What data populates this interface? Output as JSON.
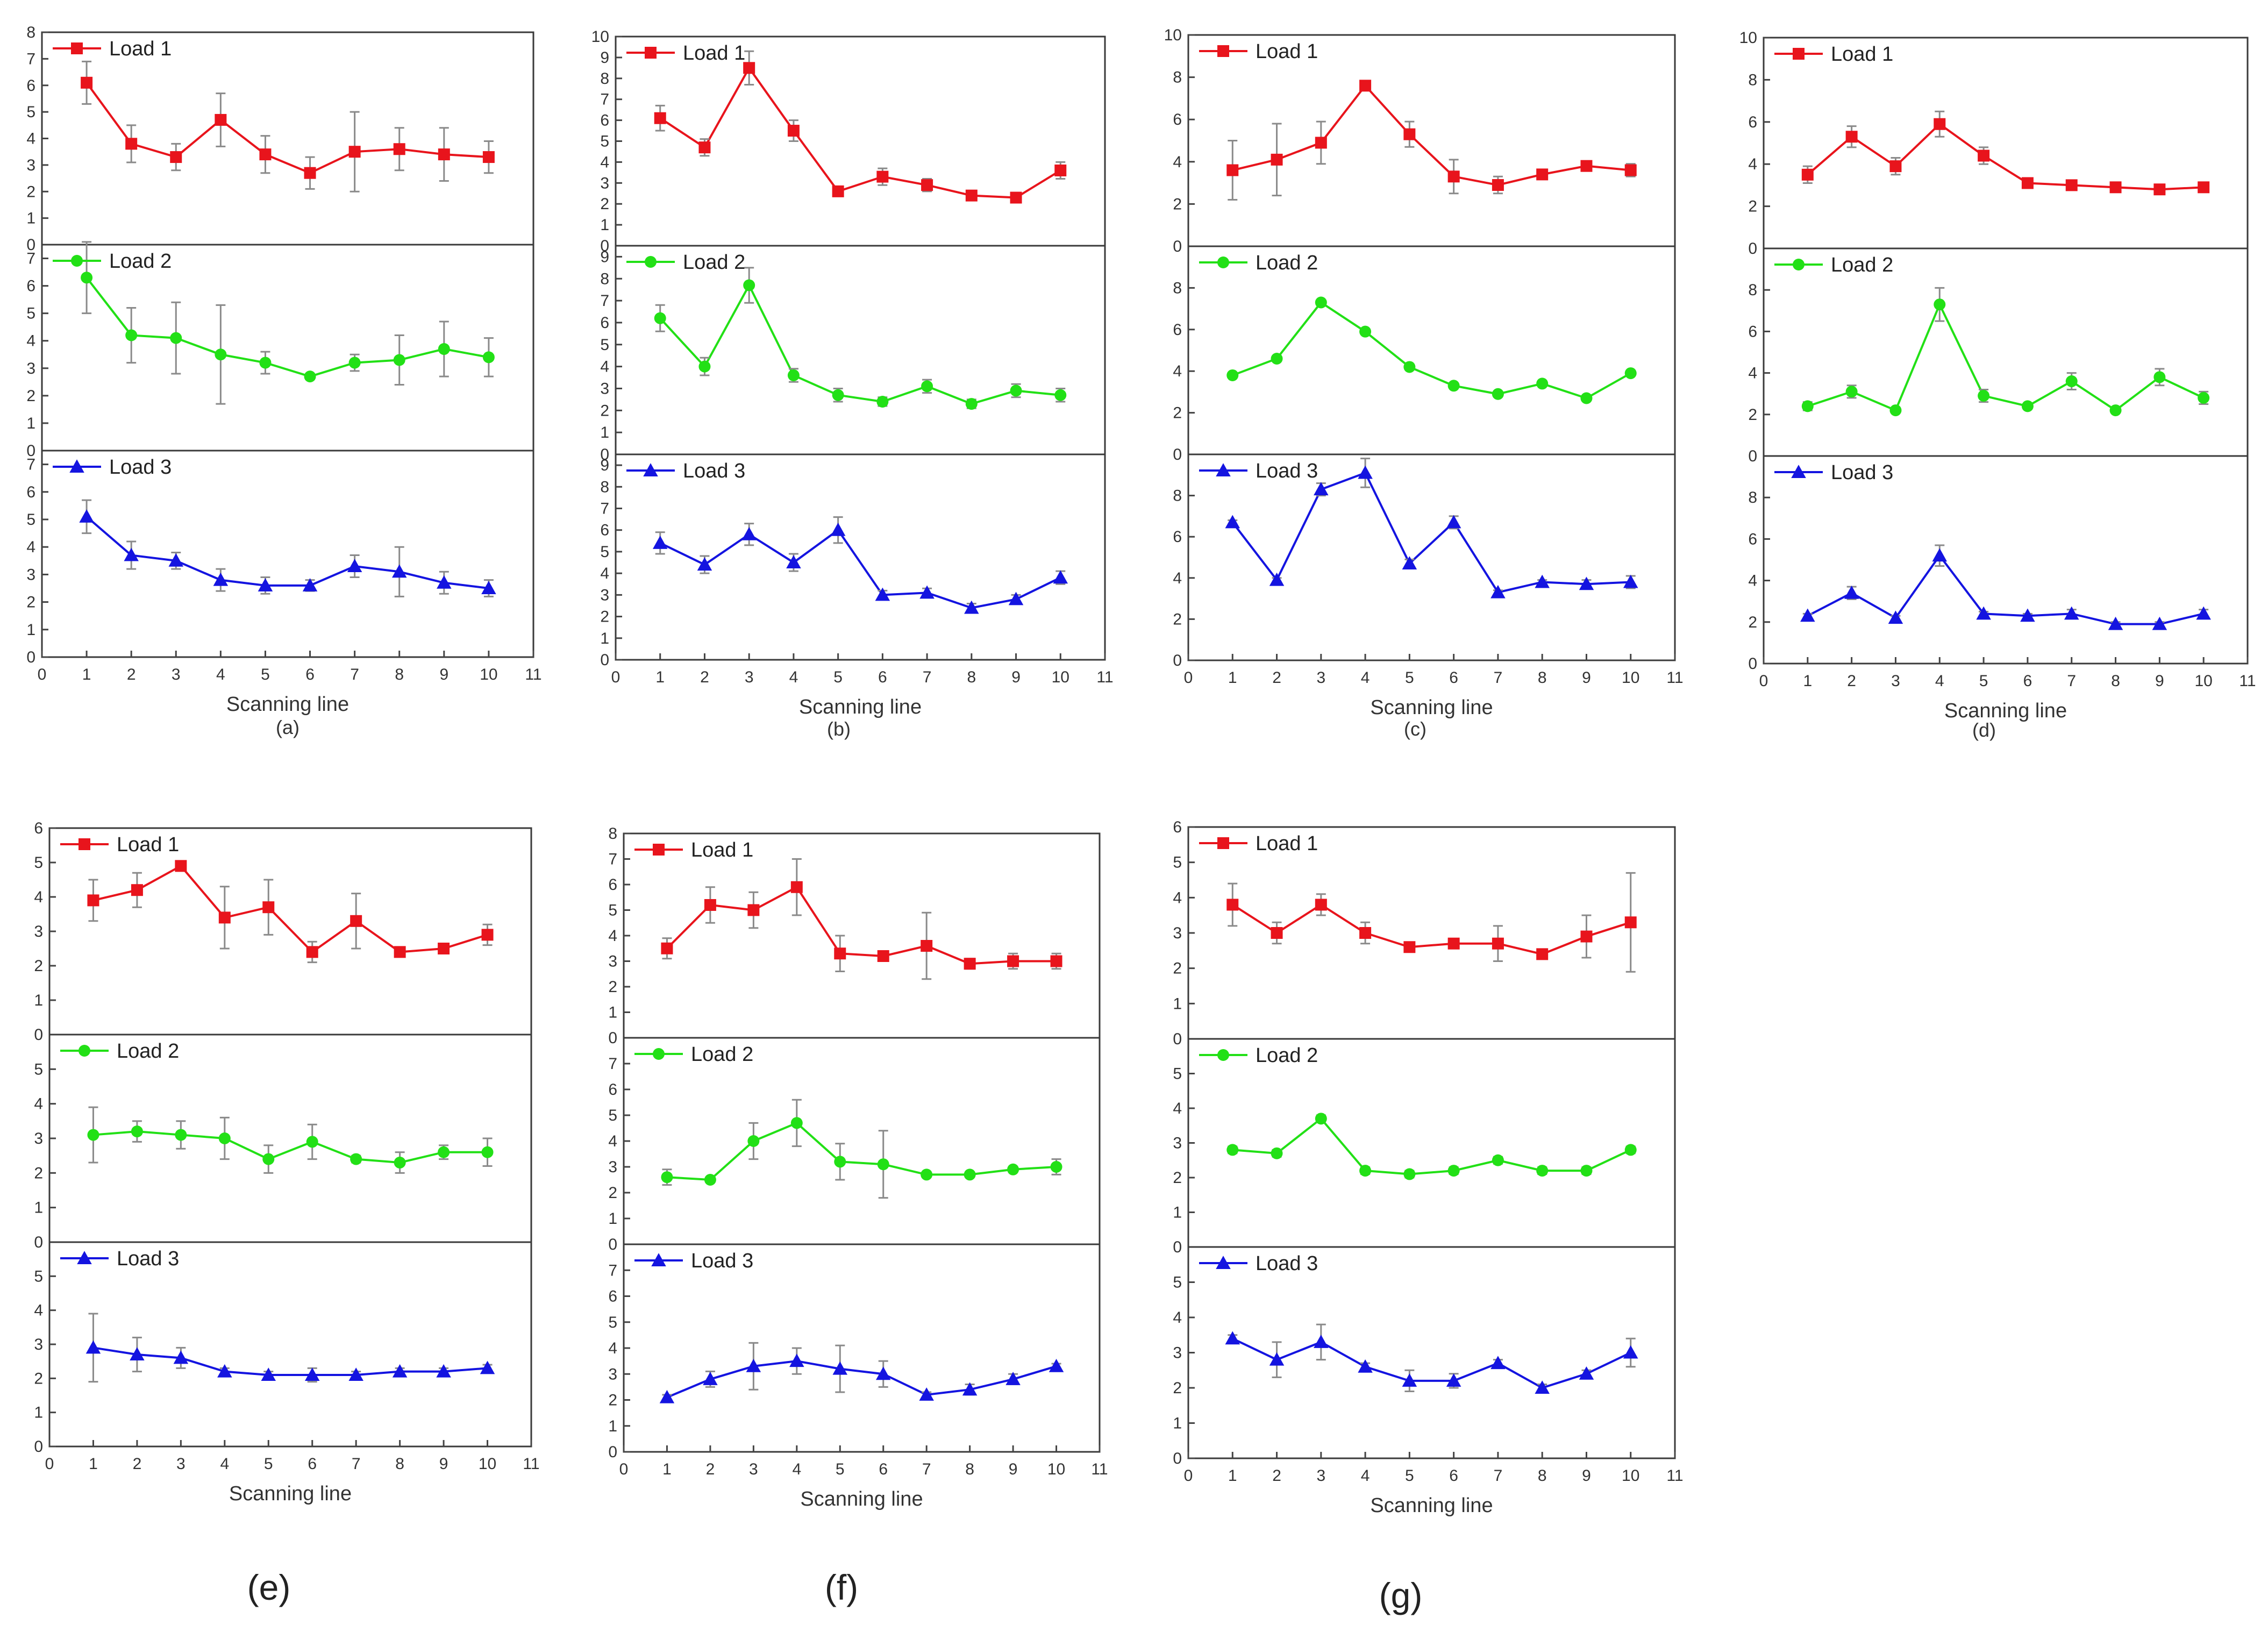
{
  "chart_data": [
    {
      "type": "line",
      "caption": "(a)",
      "xlabel": "Scanning line",
      "xlim": [
        0,
        11
      ],
      "xticks": [
        0,
        1,
        2,
        3,
        4,
        5,
        6,
        7,
        8,
        9,
        10,
        11
      ],
      "x": [
        1,
        2,
        3,
        4,
        5,
        6,
        7,
        8,
        9,
        10
      ],
      "subplots": [
        {
          "name": "Load 1",
          "color": "#e8141c",
          "marker": "square",
          "ylim": [
            0,
            8
          ],
          "yticks": [
            0,
            1,
            2,
            3,
            4,
            5,
            6,
            7,
            8
          ],
          "values": [
            6.1,
            3.8,
            3.3,
            4.7,
            3.4,
            2.7,
            3.5,
            3.6,
            3.4,
            3.3
          ],
          "errors": [
            0.8,
            0.7,
            0.5,
            1.0,
            0.7,
            0.6,
            1.5,
            0.8,
            1.0,
            0.6
          ]
        },
        {
          "name": "Load 2",
          "color": "#22e016",
          "marker": "circle",
          "ylim": [
            0,
            7.5
          ],
          "yticks": [
            0,
            1,
            2,
            3,
            4,
            5,
            6,
            7
          ],
          "values": [
            6.3,
            4.2,
            4.1,
            3.5,
            3.2,
            2.7,
            3.2,
            3.3,
            3.7,
            3.4
          ],
          "errors": [
            1.3,
            1.0,
            1.3,
            1.8,
            0.4,
            0.1,
            0.3,
            0.9,
            1.0,
            0.7
          ]
        },
        {
          "name": "Load 3",
          "color": "#1414e0",
          "marker": "triangle",
          "ylim": [
            0,
            7.5
          ],
          "yticks": [
            0,
            1,
            2,
            3,
            4,
            5,
            6,
            7
          ],
          "values": [
            5.1,
            3.7,
            3.5,
            2.8,
            2.6,
            2.6,
            3.3,
            3.1,
            2.7,
            2.5
          ],
          "errors": [
            0.6,
            0.5,
            0.3,
            0.4,
            0.3,
            0.2,
            0.4,
            0.9,
            0.4,
            0.3
          ]
        }
      ]
    },
    {
      "type": "line",
      "caption": "(b)",
      "xlabel": "Scanning line",
      "xlim": [
        0,
        11
      ],
      "xticks": [
        0,
        1,
        2,
        3,
        4,
        5,
        6,
        7,
        8,
        9,
        10,
        11
      ],
      "x": [
        1,
        2,
        3,
        4,
        5,
        6,
        7,
        8,
        9,
        10
      ],
      "subplots": [
        {
          "name": "Load 1",
          "color": "#e8141c",
          "marker": "square",
          "ylim": [
            0,
            10
          ],
          "yticks": [
            0,
            1,
            2,
            3,
            4,
            5,
            6,
            7,
            8,
            9,
            10
          ],
          "values": [
            6.1,
            4.7,
            8.5,
            5.5,
            2.6,
            3.3,
            2.9,
            2.4,
            2.3,
            3.6
          ],
          "errors": [
            0.6,
            0.4,
            0.8,
            0.5,
            0.2,
            0.4,
            0.3,
            0.2,
            0.2,
            0.4
          ]
        },
        {
          "name": "Load 2",
          "color": "#22e016",
          "marker": "circle",
          "ylim": [
            0,
            9.5
          ],
          "yticks": [
            0,
            1,
            2,
            3,
            4,
            5,
            6,
            7,
            8,
            9
          ],
          "values": [
            6.2,
            4.0,
            7.7,
            3.6,
            2.7,
            2.4,
            3.1,
            2.3,
            2.9,
            2.7
          ],
          "errors": [
            0.6,
            0.4,
            0.8,
            0.3,
            0.3,
            0.2,
            0.3,
            0.2,
            0.3,
            0.3
          ]
        },
        {
          "name": "Load 3",
          "color": "#1414e0",
          "marker": "triangle",
          "ylim": [
            0,
            9.5
          ],
          "yticks": [
            0,
            1,
            2,
            3,
            4,
            5,
            6,
            7,
            8,
            9
          ],
          "values": [
            5.4,
            4.4,
            5.8,
            4.5,
            6.0,
            3.0,
            3.1,
            2.4,
            2.8,
            3.8
          ],
          "errors": [
            0.5,
            0.4,
            0.5,
            0.4,
            0.6,
            0.2,
            0.2,
            0.2,
            0.2,
            0.3
          ]
        }
      ]
    },
    {
      "type": "line",
      "caption": "(c)",
      "xlabel": "Scanning line",
      "xlim": [
        0,
        11
      ],
      "xticks": [
        0,
        1,
        2,
        3,
        4,
        5,
        6,
        7,
        8,
        9,
        10,
        11
      ],
      "x": [
        1,
        2,
        3,
        4,
        5,
        6,
        7,
        8,
        9,
        10
      ],
      "subplots": [
        {
          "name": "Load 1",
          "color": "#e8141c",
          "marker": "square",
          "ylim": [
            0,
            10
          ],
          "yticks": [
            0,
            2,
            4,
            6,
            8,
            10
          ],
          "values": [
            3.6,
            4.1,
            4.9,
            7.6,
            5.3,
            3.3,
            2.9,
            3.4,
            3.8,
            3.6
          ],
          "errors": [
            1.4,
            1.7,
            1.0,
            0.2,
            0.6,
            0.8,
            0.4,
            0.1,
            0.1,
            0.3
          ]
        },
        {
          "name": "Load 2",
          "color": "#22e016",
          "marker": "circle",
          "ylim": [
            0,
            10
          ],
          "yticks": [
            0,
            2,
            4,
            6,
            8
          ],
          "values": [
            3.8,
            4.6,
            7.3,
            5.9,
            4.2,
            3.3,
            2.9,
            3.4,
            2.7,
            3.9
          ],
          "errors": [
            0.1,
            0.1,
            0.1,
            0.1,
            0.1,
            0.1,
            0.1,
            0.1,
            0.1,
            0.1
          ]
        },
        {
          "name": "Load 3",
          "color": "#1414e0",
          "marker": "triangle",
          "ylim": [
            0,
            10
          ],
          "yticks": [
            0,
            2,
            4,
            6,
            8
          ],
          "values": [
            6.7,
            3.9,
            8.3,
            9.1,
            4.7,
            6.7,
            3.3,
            3.8,
            3.7,
            3.8
          ],
          "errors": [
            0.1,
            0.1,
            0.3,
            0.7,
            0.2,
            0.3,
            0.1,
            0.1,
            0.2,
            0.3
          ]
        }
      ]
    },
    {
      "type": "line",
      "caption": "(d)",
      "xlabel": "Scanning line",
      "xlim": [
        0,
        11
      ],
      "xticks": [
        0,
        1,
        2,
        3,
        4,
        5,
        6,
        7,
        8,
        9,
        10,
        11
      ],
      "x": [
        1,
        2,
        3,
        4,
        5,
        6,
        7,
        8,
        9,
        10
      ],
      "subplots": [
        {
          "name": "Load 1",
          "color": "#e8141c",
          "marker": "square",
          "ylim": [
            0,
            10
          ],
          "yticks": [
            0,
            2,
            4,
            6,
            8,
            10
          ],
          "values": [
            3.5,
            5.3,
            3.9,
            5.9,
            4.4,
            3.1,
            3.0,
            2.9,
            2.8,
            2.9
          ],
          "errors": [
            0.4,
            0.5,
            0.4,
            0.6,
            0.4,
            0.2,
            0.2,
            0.2,
            0.2,
            0.2
          ]
        },
        {
          "name": "Load 2",
          "color": "#22e016",
          "marker": "circle",
          "ylim": [
            0,
            10
          ],
          "yticks": [
            0,
            2,
            4,
            6,
            8
          ],
          "values": [
            2.4,
            3.1,
            2.2,
            7.3,
            2.9,
            2.4,
            3.6,
            2.2,
            3.8,
            2.8
          ],
          "errors": [
            0.2,
            0.3,
            0.1,
            0.8,
            0.3,
            0.1,
            0.4,
            0.1,
            0.4,
            0.3
          ]
        },
        {
          "name": "Load 3",
          "color": "#1414e0",
          "marker": "triangle",
          "ylim": [
            0,
            10
          ],
          "yticks": [
            0,
            2,
            4,
            6,
            8
          ],
          "values": [
            2.3,
            3.4,
            2.2,
            5.2,
            2.4,
            2.3,
            2.4,
            1.9,
            1.9,
            2.4
          ],
          "errors": [
            0.1,
            0.3,
            0.1,
            0.5,
            0.1,
            0.1,
            0.2,
            0.1,
            0.1,
            0.2
          ]
        }
      ]
    },
    {
      "type": "line",
      "caption": "(e)",
      "xlabel": "Scanning line",
      "xlim": [
        0,
        11
      ],
      "xticks": [
        0,
        1,
        2,
        3,
        4,
        5,
        6,
        7,
        8,
        9,
        10,
        11
      ],
      "x": [
        1,
        2,
        3,
        4,
        5,
        6,
        7,
        8,
        9,
        10
      ],
      "subplots": [
        {
          "name": "Load 1",
          "color": "#e8141c",
          "marker": "square",
          "ylim": [
            0,
            6
          ],
          "yticks": [
            0,
            1,
            2,
            3,
            4,
            5,
            6
          ],
          "values": [
            3.9,
            4.2,
            4.9,
            3.4,
            3.7,
            2.4,
            3.3,
            2.4,
            2.5,
            2.9
          ],
          "errors": [
            0.6,
            0.5,
            0.1,
            0.9,
            0.8,
            0.3,
            0.8,
            0.1,
            0.1,
            0.3
          ]
        },
        {
          "name": "Load 2",
          "color": "#22e016",
          "marker": "circle",
          "ylim": [
            0,
            6
          ],
          "yticks": [
            0,
            1,
            2,
            3,
            4,
            5
          ],
          "values": [
            3.1,
            3.2,
            3.1,
            3.0,
            2.4,
            2.9,
            2.4,
            2.3,
            2.6,
            2.6
          ],
          "errors": [
            0.8,
            0.3,
            0.4,
            0.6,
            0.4,
            0.5,
            0.1,
            0.3,
            0.2,
            0.4
          ]
        },
        {
          "name": "Load 3",
          "color": "#1414e0",
          "marker": "triangle",
          "ylim": [
            0,
            6
          ],
          "yticks": [
            0,
            1,
            2,
            3,
            4,
            5
          ],
          "values": [
            2.9,
            2.7,
            2.6,
            2.2,
            2.1,
            2.1,
            2.1,
            2.2,
            2.2,
            2.3
          ],
          "errors": [
            1.0,
            0.5,
            0.3,
            0.1,
            0.1,
            0.2,
            0.1,
            0.1,
            0.1,
            0.1
          ]
        }
      ]
    },
    {
      "type": "line",
      "caption": "(f)",
      "xlabel": "Scanning line",
      "xlim": [
        0,
        11
      ],
      "xticks": [
        0,
        1,
        2,
        3,
        4,
        5,
        6,
        7,
        8,
        9,
        10,
        11
      ],
      "x": [
        1,
        2,
        3,
        4,
        5,
        6,
        7,
        8,
        9,
        10
      ],
      "subplots": [
        {
          "name": "Load 1",
          "color": "#e8141c",
          "marker": "square",
          "ylim": [
            0,
            8
          ],
          "yticks": [
            0,
            1,
            2,
            3,
            4,
            5,
            6,
            7,
            8
          ],
          "values": [
            3.5,
            5.2,
            5.0,
            5.9,
            3.3,
            3.2,
            3.6,
            2.9,
            3.0,
            3.0
          ],
          "errors": [
            0.4,
            0.7,
            0.7,
            1.1,
            0.7,
            0.1,
            1.3,
            0.2,
            0.3,
            0.3
          ]
        },
        {
          "name": "Load 2",
          "color": "#22e016",
          "marker": "circle",
          "ylim": [
            0,
            8
          ],
          "yticks": [
            0,
            1,
            2,
            3,
            4,
            5,
            6,
            7
          ],
          "values": [
            2.6,
            2.5,
            4.0,
            4.7,
            3.2,
            3.1,
            2.7,
            2.7,
            2.9,
            3.0
          ],
          "errors": [
            0.3,
            0.1,
            0.7,
            0.9,
            0.7,
            1.3,
            0.1,
            0.1,
            0.1,
            0.3
          ]
        },
        {
          "name": "Load 3",
          "color": "#1414e0",
          "marker": "triangle",
          "ylim": [
            0,
            8
          ],
          "yticks": [
            0,
            1,
            2,
            3,
            4,
            5,
            6,
            7
          ],
          "values": [
            2.1,
            2.8,
            3.3,
            3.5,
            3.2,
            3.0,
            2.2,
            2.4,
            2.8,
            3.3
          ],
          "errors": [
            0.1,
            0.3,
            0.9,
            0.5,
            0.9,
            0.5,
            0.1,
            0.2,
            0.2,
            0.1
          ]
        }
      ]
    },
    {
      "type": "line",
      "caption": "(g)",
      "xlabel": "Scanning line",
      "xlim": [
        0,
        11
      ],
      "xticks": [
        0,
        1,
        2,
        3,
        4,
        5,
        6,
        7,
        8,
        9,
        10,
        11
      ],
      "x": [
        1,
        2,
        3,
        4,
        5,
        6,
        7,
        8,
        9,
        10
      ],
      "subplots": [
        {
          "name": "Load 1",
          "color": "#e8141c",
          "marker": "square",
          "ylim": [
            0,
            6
          ],
          "yticks": [
            0,
            1,
            2,
            3,
            4,
            5,
            6
          ],
          "values": [
            3.8,
            3.0,
            3.8,
            3.0,
            2.6,
            2.7,
            2.7,
            2.4,
            2.9,
            3.3
          ],
          "errors": [
            0.6,
            0.3,
            0.3,
            0.3,
            0.1,
            0.1,
            0.5,
            0.1,
            0.6,
            1.4
          ]
        },
        {
          "name": "Load 2",
          "color": "#22e016",
          "marker": "circle",
          "ylim": [
            0,
            6
          ],
          "yticks": [
            0,
            1,
            2,
            3,
            4,
            5
          ],
          "values": [
            2.8,
            2.7,
            3.7,
            2.2,
            2.1,
            2.2,
            2.5,
            2.2,
            2.2,
            2.8
          ],
          "errors": [
            0.1,
            0.1,
            0.1,
            0.1,
            0.1,
            0.1,
            0.1,
            0.1,
            0.1,
            0.1
          ]
        },
        {
          "name": "Load 3",
          "color": "#1414e0",
          "marker": "triangle",
          "ylim": [
            0,
            6
          ],
          "yticks": [
            0,
            1,
            2,
            3,
            4,
            5
          ],
          "values": [
            3.4,
            2.8,
            3.3,
            2.6,
            2.2,
            2.2,
            2.7,
            2.0,
            2.4,
            3.0
          ],
          "errors": [
            0.1,
            0.5,
            0.5,
            0.1,
            0.3,
            0.2,
            0.1,
            0.1,
            0.1,
            0.4
          ]
        }
      ]
    }
  ]
}
